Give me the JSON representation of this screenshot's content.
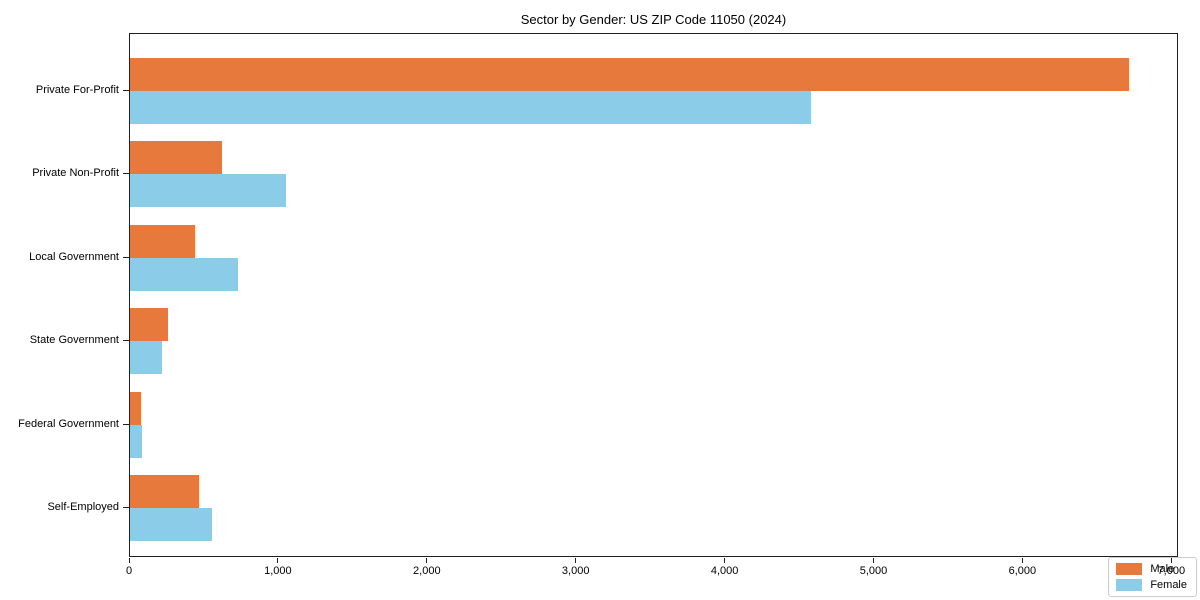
{
  "chart_data": {
    "type": "bar",
    "orientation": "horizontal",
    "title": "Sector by Gender: US ZIP Code 11050 (2024)",
    "categories": [
      "Private For-Profit",
      "Private Non-Profit",
      "Local Government",
      "State Government",
      "Federal Government",
      "Self-Employed"
    ],
    "series": [
      {
        "name": "Male",
        "color": "#e8793d",
        "values": [
          6710,
          615,
          435,
          255,
          75,
          465
        ]
      },
      {
        "name": "Female",
        "color": "#8bcde9",
        "values": [
          4570,
          1045,
          725,
          215,
          80,
          550
        ]
      }
    ],
    "xlabel": "",
    "ylabel": "",
    "xlim": [
      0,
      7045
    ],
    "x_ticks": [
      0,
      1000,
      2000,
      3000,
      4000,
      5000,
      6000,
      7000
    ],
    "x_tick_labels": [
      "0",
      "1,000",
      "2,000",
      "3,000",
      "4,000",
      "5,000",
      "6,000",
      "7,000"
    ],
    "grid": false,
    "legend_position": "lower right",
    "background_color": "#ffffff",
    "axis_color": "#202020"
  }
}
